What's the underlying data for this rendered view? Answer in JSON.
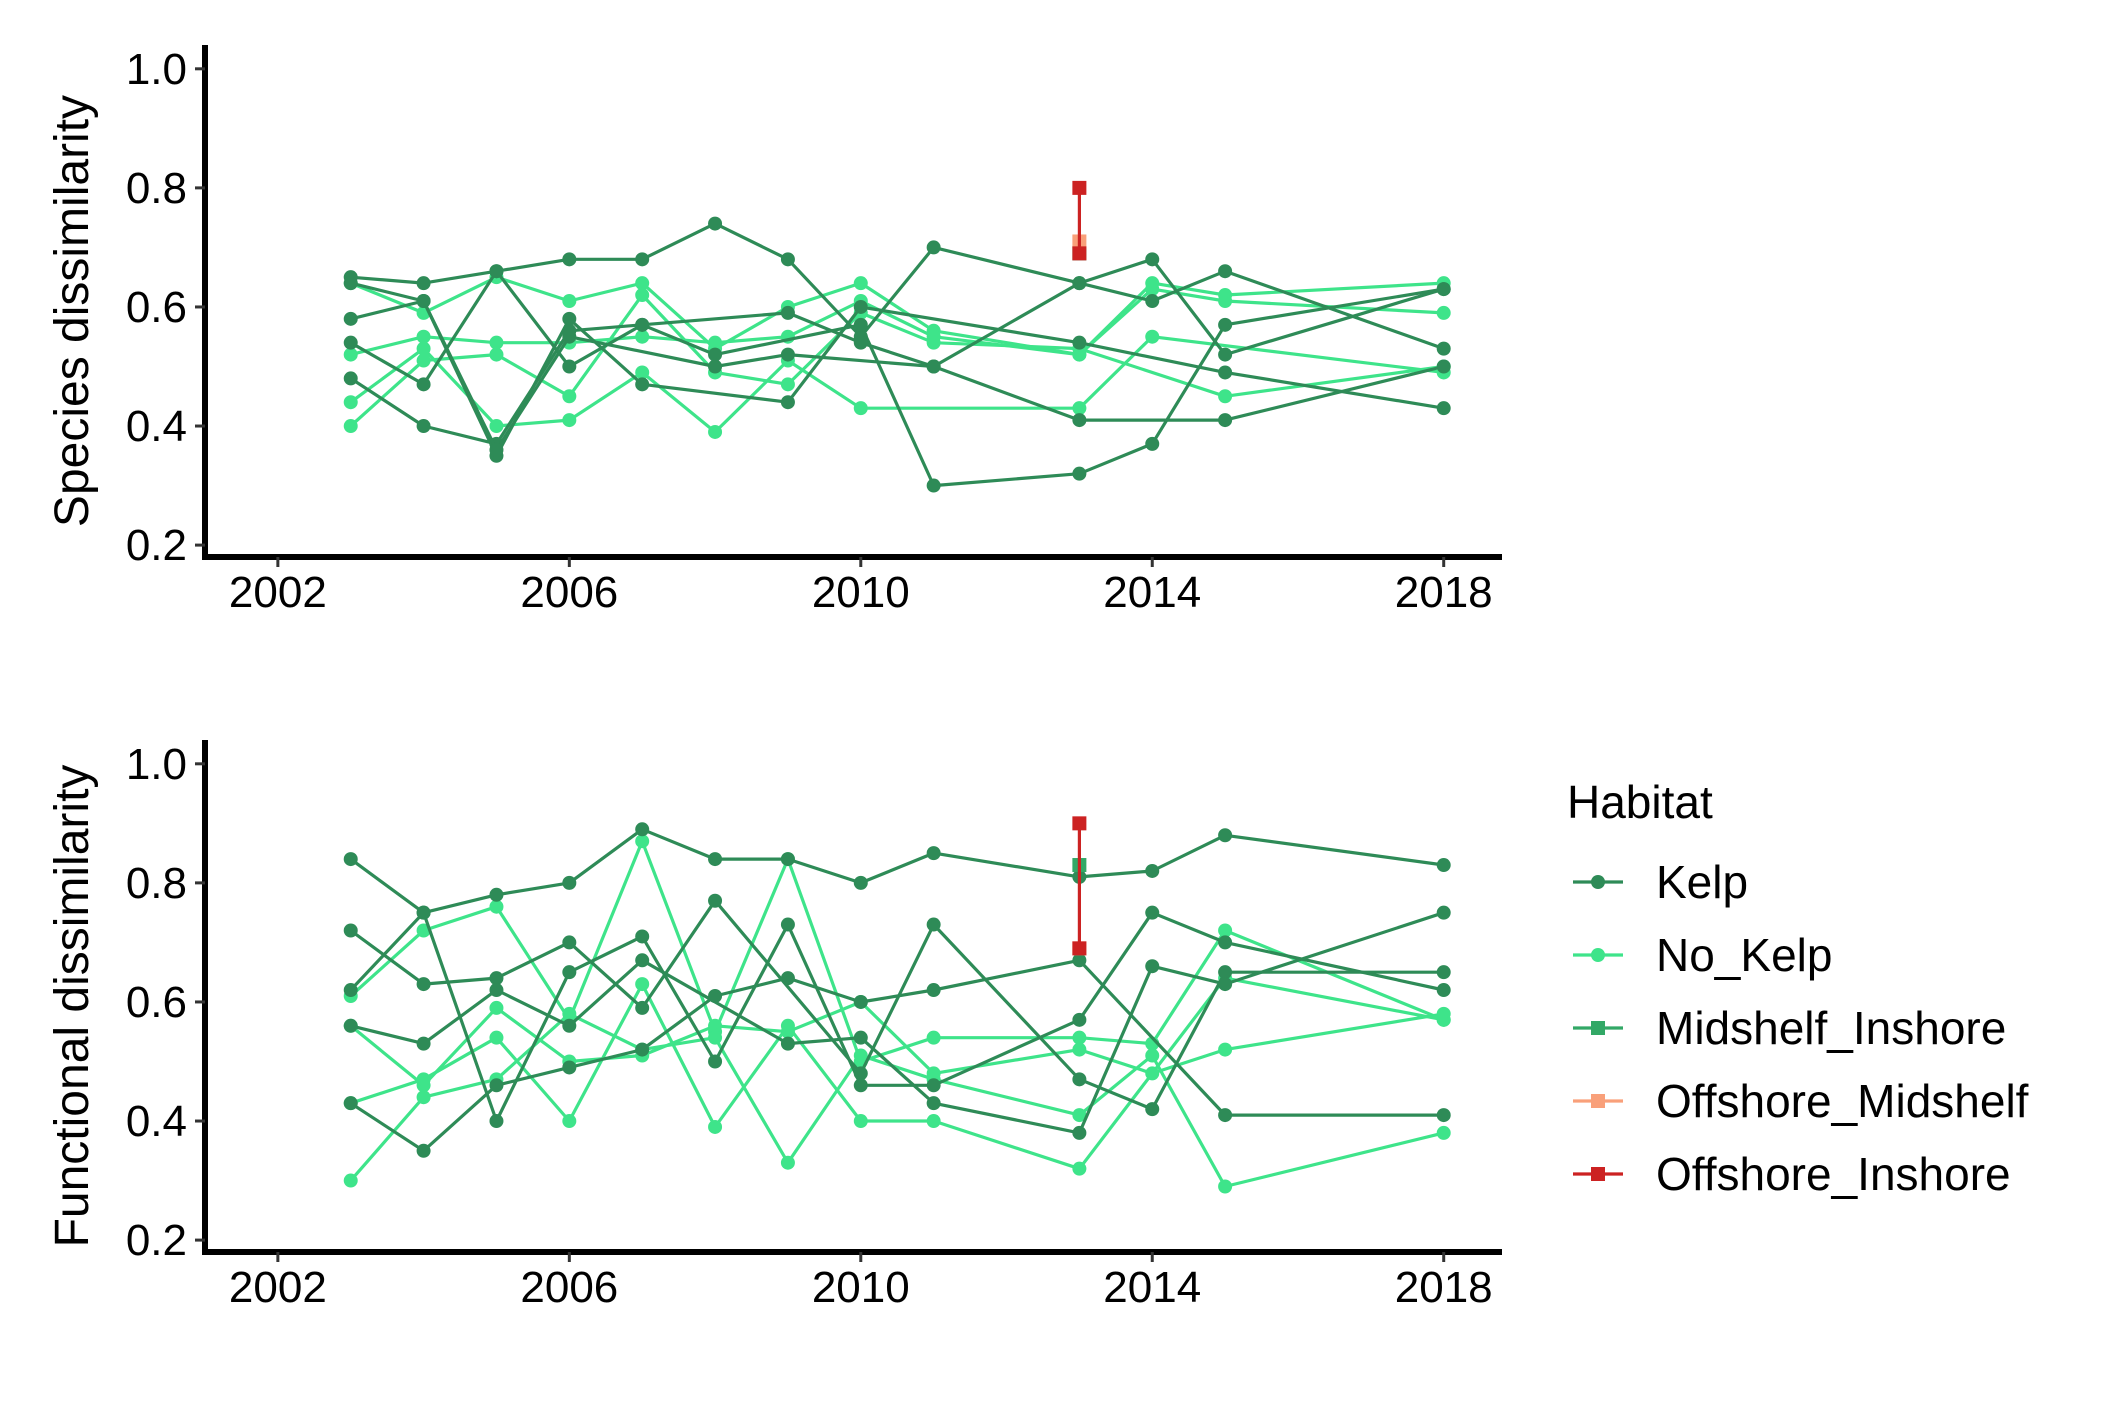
{
  "chart_data": [
    {
      "type": "line",
      "ylabel": "Species dissimilarity",
      "xlabel": "",
      "xlim": [
        2001.0,
        2018.8
      ],
      "ylim": [
        0.18,
        1.04
      ],
      "xticks": [
        "2002",
        "2006",
        "2010",
        "2014",
        "2018"
      ],
      "yticks": [
        "0.2",
        "0.4",
        "0.6",
        "0.8",
        "1.0"
      ],
      "series": [
        {
          "group": "Kelp",
          "x": [
            2003,
            2004,
            2005,
            2006,
            2007,
            2008,
            2009,
            2010,
            2011,
            2013,
            2014,
            2015,
            2018
          ],
          "y": [
            0.65,
            0.64,
            0.66,
            0.68,
            0.68,
            0.74,
            0.68,
            0.55,
            0.7,
            0.64,
            0.68,
            0.52,
            0.63
          ]
        },
        {
          "group": "Kelp",
          "x": [
            2003,
            2004,
            2005,
            2006,
            2007,
            2009,
            2010,
            2013,
            2015,
            2018
          ],
          "y": [
            0.58,
            0.61,
            0.35,
            0.58,
            0.47,
            0.44,
            0.6,
            0.54,
            0.49,
            0.43
          ]
        },
        {
          "group": "Kelp",
          "x": [
            2003,
            2004,
            2005,
            2006,
            2007,
            2008,
            2010,
            2011,
            2013,
            2014,
            2015,
            2018
          ],
          "y": [
            0.54,
            0.47,
            0.66,
            0.5,
            0.57,
            0.52,
            0.57,
            0.3,
            0.32,
            0.37,
            0.57,
            0.63
          ]
        },
        {
          "group": "Kelp",
          "x": [
            2003,
            2004,
            2005,
            2006,
            2007,
            2009,
            2010,
            2011,
            2013,
            2014,
            2015,
            2018
          ],
          "y": [
            0.48,
            0.4,
            0.37,
            0.56,
            0.57,
            0.59,
            0.54,
            0.5,
            0.64,
            0.61,
            0.66,
            0.53
          ]
        },
        {
          "group": "Kelp",
          "x": [
            2003,
            2004,
            2005,
            2006,
            2008,
            2009,
            2011,
            2013,
            2015,
            2018
          ],
          "y": [
            0.64,
            0.61,
            0.36,
            0.55,
            0.5,
            0.52,
            0.5,
            0.41,
            0.41,
            0.5
          ]
        },
        {
          "group": "No_Kelp",
          "x": [
            2003,
            2004,
            2005,
            2006,
            2007,
            2008,
            2009,
            2010,
            2011,
            2013,
            2014,
            2015,
            2018
          ],
          "y": [
            0.64,
            0.59,
            0.65,
            0.61,
            0.64,
            0.53,
            0.6,
            0.64,
            0.56,
            0.52,
            0.64,
            0.62,
            0.64
          ]
        },
        {
          "group": "No_Kelp",
          "x": [
            2003,
            2004,
            2005,
            2006,
            2007,
            2008,
            2009,
            2010,
            2011,
            2013,
            2014,
            2015,
            2018
          ],
          "y": [
            0.52,
            0.55,
            0.54,
            0.54,
            0.55,
            0.54,
            0.55,
            0.61,
            0.55,
            0.52,
            0.63,
            0.61,
            0.59
          ]
        },
        {
          "group": "No_Kelp",
          "x": [
            2003,
            2004,
            2005,
            2006,
            2007,
            2008,
            2009,
            2010,
            2013,
            2014,
            2018
          ],
          "y": [
            0.44,
            0.53,
            0.4,
            0.41,
            0.49,
            0.39,
            0.51,
            0.43,
            0.43,
            0.55,
            0.49
          ]
        },
        {
          "group": "No_Kelp",
          "x": [
            2003,
            2004,
            2005,
            2006,
            2007,
            2008,
            2009,
            2010,
            2011,
            2013,
            2015,
            2018
          ],
          "y": [
            0.4,
            0.51,
            0.52,
            0.45,
            0.62,
            0.49,
            0.47,
            0.59,
            0.54,
            0.53,
            0.45,
            0.5
          ]
        },
        {
          "group": "Midshelf_Inshore",
          "x": [
            2013
          ],
          "y": [
            0.69
          ]
        },
        {
          "group": "Offshore_Midshelf",
          "x": [
            2013
          ],
          "y": [
            0.71
          ]
        },
        {
          "group": "Offshore_Inshore",
          "x": [
            2013,
            2013
          ],
          "y": [
            0.69,
            0.8
          ]
        }
      ]
    },
    {
      "type": "line",
      "ylabel": "Functional dissimilarity",
      "xlabel": "",
      "xlim": [
        2001.0,
        2018.8
      ],
      "ylim": [
        0.18,
        1.04
      ],
      "xticks": [
        "2002",
        "2006",
        "2010",
        "2014",
        "2018"
      ],
      "yticks": [
        "0.2",
        "0.4",
        "0.6",
        "0.8",
        "1.0"
      ],
      "series": [
        {
          "group": "Kelp",
          "x": [
            2003,
            2004,
            2005,
            2006,
            2007,
            2008,
            2009,
            2010,
            2011,
            2013,
            2014,
            2015,
            2018
          ],
          "y": [
            0.84,
            0.75,
            0.78,
            0.8,
            0.89,
            0.84,
            0.84,
            0.8,
            0.85,
            0.81,
            0.82,
            0.88,
            0.83
          ]
        },
        {
          "group": "Kelp",
          "x": [
            2003,
            2004,
            2005,
            2006,
            2007,
            2008,
            2010,
            2011,
            2013,
            2014,
            2015,
            2018
          ],
          "y": [
            0.72,
            0.63,
            0.64,
            0.7,
            0.59,
            0.77,
            0.48,
            0.73,
            0.47,
            0.42,
            0.65,
            0.65
          ]
        },
        {
          "group": "Kelp",
          "x": [
            2003,
            2004,
            2005,
            2006,
            2007,
            2008,
            2009,
            2010,
            2011,
            2013,
            2014,
            2015,
            2018
          ],
          "y": [
            0.62,
            0.75,
            0.4,
            0.65,
            0.71,
            0.5,
            0.73,
            0.46,
            0.46,
            0.57,
            0.75,
            0.7,
            0.62
          ]
        },
        {
          "group": "Kelp",
          "x": [
            2003,
            2004,
            2005,
            2006,
            2007,
            2009,
            2010,
            2011,
            2013,
            2014,
            2015,
            2018
          ],
          "y": [
            0.56,
            0.53,
            0.62,
            0.56,
            0.67,
            0.53,
            0.54,
            0.43,
            0.38,
            0.66,
            0.63,
            0.75
          ]
        },
        {
          "group": "Kelp",
          "x": [
            2003,
            2004,
            2005,
            2006,
            2007,
            2008,
            2009,
            2010,
            2011,
            2013,
            2015,
            2018
          ],
          "y": [
            0.43,
            0.35,
            0.46,
            0.49,
            0.52,
            0.61,
            0.64,
            0.6,
            0.62,
            0.67,
            0.41,
            0.41
          ]
        },
        {
          "group": "No_Kelp",
          "x": [
            2003,
            2004,
            2005,
            2006,
            2007,
            2008,
            2009,
            2010,
            2011,
            2013,
            2014,
            2015,
            2018
          ],
          "y": [
            0.61,
            0.72,
            0.76,
            0.57,
            0.87,
            0.55,
            0.84,
            0.5,
            0.54,
            0.54,
            0.53,
            0.72,
            0.57
          ]
        },
        {
          "group": "No_Kelp",
          "x": [
            2003,
            2004,
            2005,
            2006,
            2007,
            2008,
            2009,
            2010,
            2011,
            2013,
            2014,
            2015,
            2018
          ],
          "y": [
            0.56,
            0.46,
            0.59,
            0.5,
            0.51,
            0.56,
            0.55,
            0.6,
            0.48,
            0.52,
            0.48,
            0.52,
            0.58
          ]
        },
        {
          "group": "No_Kelp",
          "x": [
            2003,
            2004,
            2005,
            2006,
            2007,
            2008,
            2009,
            2010,
            2011,
            2013,
            2015,
            2018
          ],
          "y": [
            0.43,
            0.47,
            0.54,
            0.4,
            0.63,
            0.39,
            0.56,
            0.4,
            0.4,
            0.32,
            0.64,
            0.57
          ]
        },
        {
          "group": "No_Kelp",
          "x": [
            2003,
            2004,
            2005,
            2006,
            2007,
            2008,
            2009,
            2010,
            2011,
            2013,
            2014,
            2015,
            2018
          ],
          "y": [
            0.3,
            0.44,
            0.47,
            0.58,
            0.52,
            0.54,
            0.33,
            0.51,
            0.47,
            0.41,
            0.51,
            0.29,
            0.38
          ]
        },
        {
          "group": "Midshelf_Inshore",
          "x": [
            2013
          ],
          "y": [
            0.83
          ]
        },
        {
          "group": "Offshore_Midshelf",
          "x": [
            2013
          ],
          "y": [
            0.69
          ]
        },
        {
          "group": "Offshore_Inshore",
          "x": [
            2013,
            2013
          ],
          "y": [
            0.69,
            0.9
          ]
        }
      ]
    }
  ],
  "legend": {
    "title": "Habitat",
    "placement": "right",
    "items": [
      {
        "name": "Kelp",
        "color": "#2e8b57",
        "marker": "circle"
      },
      {
        "name": "No_Kelp",
        "color": "#3ee48a",
        "marker": "circle"
      },
      {
        "name": "Midshelf_Inshore",
        "color": "#32a866",
        "marker": "square"
      },
      {
        "name": "Offshore_Midshelf",
        "color": "#f9a07a",
        "marker": "square"
      },
      {
        "name": "Offshore_Inshore",
        "color": "#cc2222",
        "marker": "square"
      }
    ]
  }
}
